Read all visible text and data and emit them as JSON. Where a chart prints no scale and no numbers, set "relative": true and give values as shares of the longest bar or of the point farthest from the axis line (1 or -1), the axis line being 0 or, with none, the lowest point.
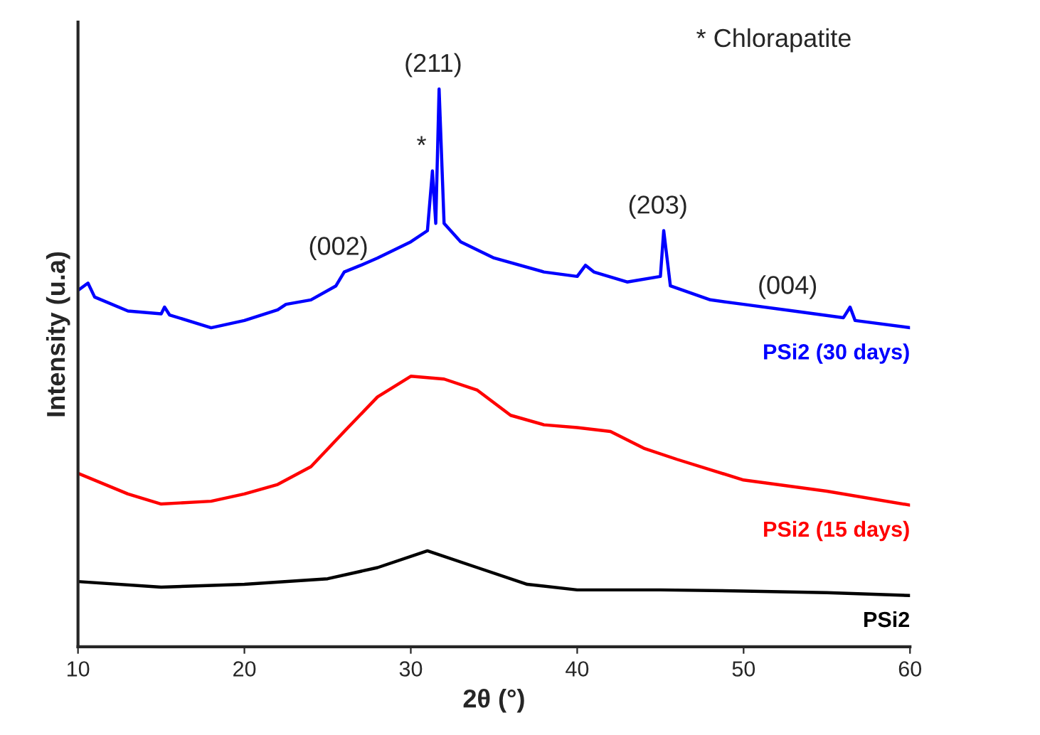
{
  "chart_data": {
    "type": "line",
    "relative": true,
    "xlabel": "2θ (°)",
    "ylabel": "Intensity (u.a)",
    "xlim": [
      10,
      60
    ],
    "xticks": [
      10,
      20,
      30,
      40,
      50,
      60
    ],
    "grid": false,
    "legend": false,
    "marker": "none",
    "line_style": "solid",
    "series": [
      {
        "name": "PSi2",
        "color": "#000000",
        "x": [
          10,
          15,
          20,
          25,
          28,
          31,
          34,
          37,
          40,
          45,
          50,
          55,
          60
        ],
        "values": [
          0.117,
          0.107,
          0.112,
          0.122,
          0.142,
          0.172,
          0.142,
          0.112,
          0.102,
          0.102,
          0.1,
          0.097,
          0.092
        ]
      },
      {
        "name": "PSi2 (15 days)",
        "color": "#ff0000",
        "x": [
          10,
          13,
          15,
          18,
          20,
          22,
          24,
          26,
          28,
          30,
          32,
          34,
          36,
          38,
          40,
          42,
          44,
          46,
          50,
          55,
          60
        ],
        "values": [
          0.311,
          0.274,
          0.256,
          0.261,
          0.274,
          0.291,
          0.323,
          0.386,
          0.448,
          0.485,
          0.48,
          0.46,
          0.415,
          0.398,
          0.393,
          0.386,
          0.356,
          0.336,
          0.299,
          0.279,
          0.254
        ]
      },
      {
        "name": "PSi2 (30 days)",
        "color": "#0000ff",
        "x": [
          10,
          10.6,
          11,
          13,
          15,
          15.2,
          15.5,
          18,
          20,
          22,
          22.5,
          24,
          25.5,
          26,
          27,
          28,
          30,
          31,
          31.3,
          31.5,
          31.7,
          32,
          33,
          35,
          38,
          40,
          40.5,
          41,
          43,
          45,
          45.2,
          45.6,
          48,
          50,
          53,
          56,
          56.4,
          56.7,
          60
        ],
        "values": [
          0.639,
          0.652,
          0.627,
          0.602,
          0.597,
          0.609,
          0.595,
          0.572,
          0.585,
          0.604,
          0.614,
          0.622,
          0.647,
          0.672,
          0.684,
          0.697,
          0.726,
          0.746,
          0.853,
          0.759,
          1,
          0.759,
          0.726,
          0.697,
          0.672,
          0.664,
          0.684,
          0.672,
          0.654,
          0.664,
          0.746,
          0.647,
          0.622,
          0.614,
          0.602,
          0.59,
          0.609,
          0.585,
          0.572
        ]
      }
    ],
    "annotations": [
      {
        "text": "(211)",
        "x": 31.7,
        "y": 1
      },
      {
        "text": "*",
        "x": 31.3,
        "y": 0.853
      },
      {
        "text": "(002)",
        "x": 26,
        "y": 0.672
      },
      {
        "text": "(203)",
        "x": 45.2,
        "y": 0.746
      },
      {
        "text": "(004)",
        "x": 53,
        "y": 0.602
      },
      "* Chlorapatite"
    ]
  }
}
